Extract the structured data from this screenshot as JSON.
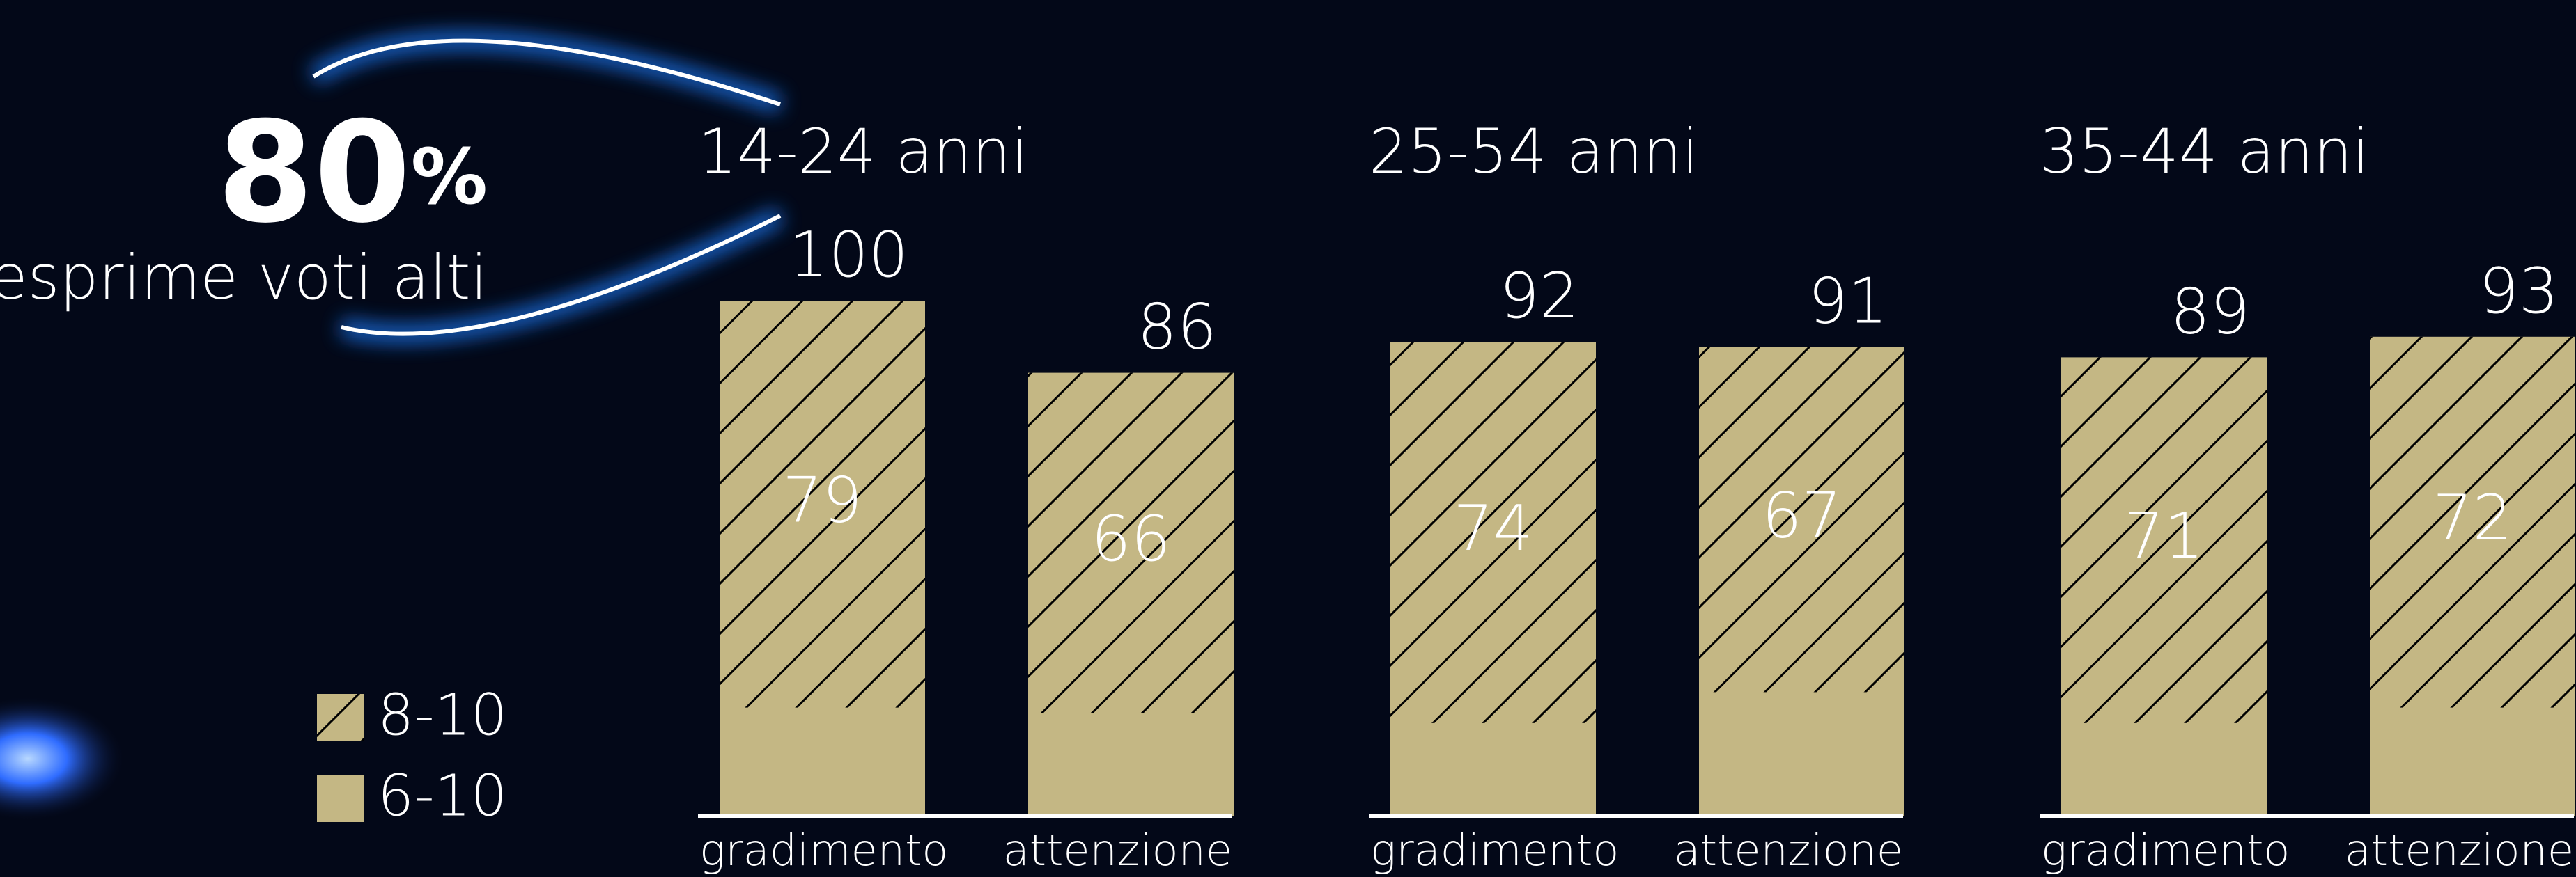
{
  "highlight": {
    "number": "80",
    "unit": "%",
    "caption": "esprime voti alti"
  },
  "legend": {
    "items": [
      {
        "label": "8-10",
        "style": "hatch"
      },
      {
        "label": "6-10",
        "style": "solid"
      }
    ],
    "color": "#c4b784"
  },
  "chart_data": [
    {
      "type": "bar",
      "title": "14-24 anni",
      "categories": [
        "gradimento",
        "attenzione"
      ],
      "series": [
        {
          "values": [
            100,
            86
          ]
        },
        {
          "values": [
            79,
            66
          ]
        }
      ],
      "ylim": [
        0,
        100
      ]
    },
    {
      "type": "bar",
      "title": "25-54 anni",
      "categories": [
        "gradimento",
        "attenzione"
      ],
      "series": [
        {
          "values": [
            92,
            91
          ]
        },
        {
          "values": [
            74,
            67
          ]
        }
      ],
      "ylim": [
        0,
        100
      ]
    },
    {
      "type": "bar",
      "title": "35-44 anni",
      "categories": [
        "gradimento",
        "attenzione"
      ],
      "series": [
        {
          "values": [
            89,
            93
          ]
        },
        {
          "values": [
            71,
            72
          ]
        }
      ],
      "ylim": [
        0,
        100
      ]
    }
  ]
}
